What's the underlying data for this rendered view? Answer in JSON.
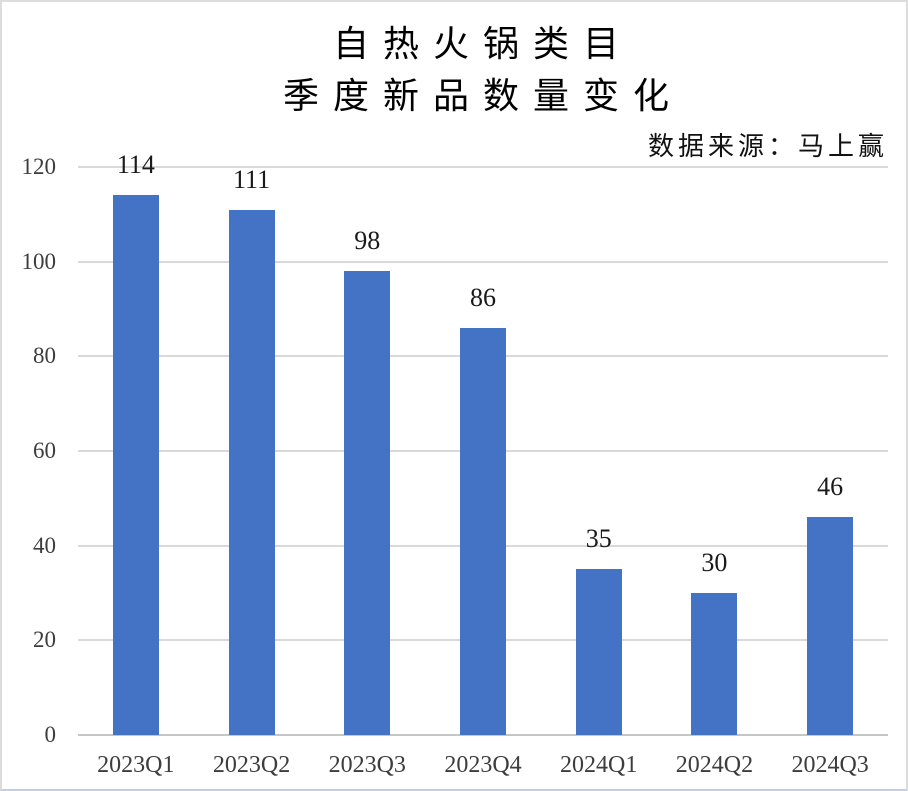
{
  "header": {
    "title_line1": "自热火锅类目",
    "title_line2": "季度新品数量变化",
    "source_note": "数据来源：马上赢"
  },
  "chart_data": {
    "type": "bar",
    "title": "自热火锅类目 季度新品数量变化",
    "subtitle": "季度新品数量变化",
    "source": "数据来源：马上赢",
    "categories": [
      "2023Q1",
      "2023Q2",
      "2023Q3",
      "2023Q4",
      "2024Q1",
      "2024Q2",
      "2024Q3"
    ],
    "values": [
      114,
      111,
      98,
      86,
      35,
      30,
      46
    ],
    "data_labels": [
      114,
      111,
      98,
      86,
      35,
      30,
      46
    ],
    "xlabel": "",
    "ylabel": "",
    "ylim": [
      0,
      120
    ],
    "yticks": [
      0,
      20,
      40,
      60,
      80,
      100,
      120
    ],
    "grid": "horizontal",
    "legend": "none",
    "colors": {
      "bar": "#4472C4",
      "gridline": "#D9D9D9",
      "axis_line": "#C6C6C6",
      "tick_text": "#3d3d3d",
      "value_text": "#1a1a1a",
      "title_text": "#000000"
    }
  }
}
